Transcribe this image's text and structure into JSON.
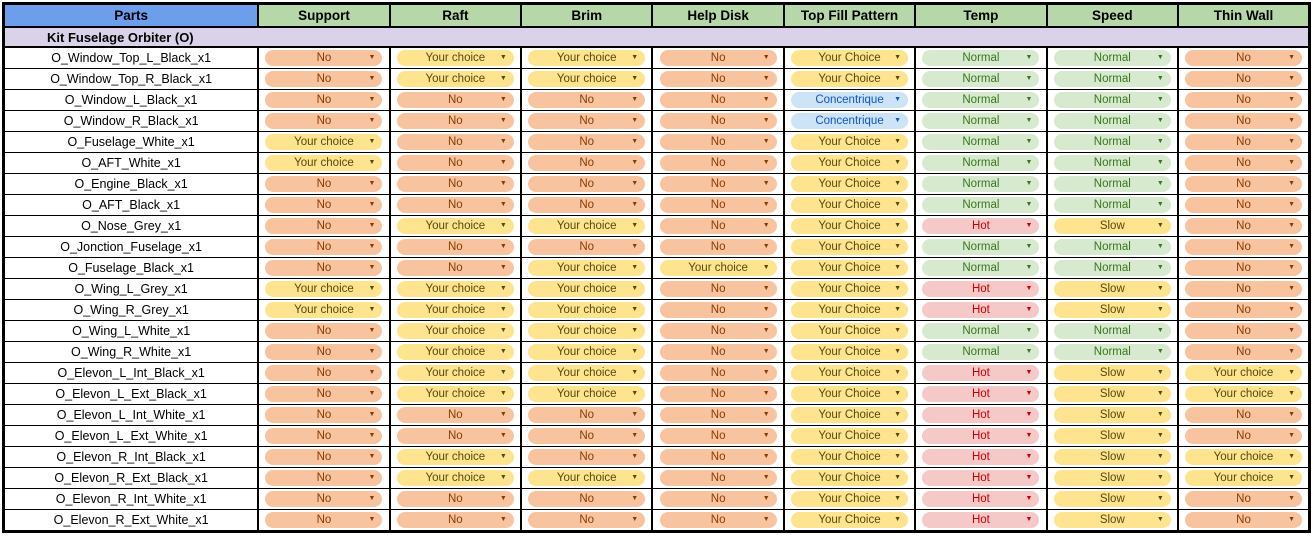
{
  "table": {
    "columns": [
      "Parts",
      "Support",
      "Raft",
      "Brim",
      "Help Disk",
      "Top Fill Pattern",
      "Temp",
      "Speed",
      "Thin Wall"
    ],
    "section_title": "Kit Fuselage Orbiter (O)",
    "rows": [
      {
        "part": "O_Window_Top_L_Black_x1",
        "cells": [
          "No",
          "Your choice",
          "Your choice",
          "No",
          "Your Choice",
          "Normal",
          "Normal",
          "No"
        ]
      },
      {
        "part": "O_Window_Top_R_Black_x1",
        "cells": [
          "No",
          "Your choice",
          "Your choice",
          "No",
          "Your Choice",
          "Normal",
          "Normal",
          "No"
        ]
      },
      {
        "part": "O_Window_L_Black_x1",
        "cells": [
          "No",
          "No",
          "No",
          "No",
          "Concentrique",
          "Normal",
          "Normal",
          "No"
        ]
      },
      {
        "part": "O_Window_R_Black_x1",
        "cells": [
          "No",
          "No",
          "No",
          "No",
          "Concentrique",
          "Normal",
          "Normal",
          "No"
        ]
      },
      {
        "part": "O_Fuselage_White_x1",
        "cells": [
          "Your choice",
          "No",
          "No",
          "No",
          "Your Choice",
          "Normal",
          "Normal",
          "No"
        ]
      },
      {
        "part": "O_AFT_White_x1",
        "cells": [
          "Your choice",
          "No",
          "No",
          "No",
          "Your Choice",
          "Normal",
          "Normal",
          "No"
        ]
      },
      {
        "part": "O_Engine_Black_x1",
        "cells": [
          "No",
          "No",
          "No",
          "No",
          "Your Choice",
          "Normal",
          "Normal",
          "No"
        ]
      },
      {
        "part": "O_AFT_Black_x1",
        "cells": [
          "No",
          "No",
          "No",
          "No",
          "Your Choice",
          "Normal",
          "Normal",
          "No"
        ]
      },
      {
        "part": "O_Nose_Grey_x1",
        "cells": [
          "No",
          "Your choice",
          "Your choice",
          "No",
          "Your Choice",
          "Hot",
          "Slow",
          "No"
        ]
      },
      {
        "part": "O_Jonction_Fuselage_x1",
        "cells": [
          "No",
          "No",
          "No",
          "No",
          "Your Choice",
          "Normal",
          "Normal",
          "No"
        ]
      },
      {
        "part": "O_Fuselage_Black_x1",
        "cells": [
          "No",
          "No",
          "Your choice",
          "Your choice",
          "Your Choice",
          "Normal",
          "Normal",
          "No"
        ]
      },
      {
        "part": "O_Wing_L_Grey_x1",
        "cells": [
          "Your choice",
          "Your choice",
          "Your choice",
          "No",
          "Your Choice",
          "Hot",
          "Slow",
          "No"
        ]
      },
      {
        "part": "O_Wing_R_Grey_x1",
        "cells": [
          "Your choice",
          "Your choice",
          "Your choice",
          "No",
          "Your Choice",
          "Hot",
          "Slow",
          "No"
        ]
      },
      {
        "part": "O_Wing_L_White_x1",
        "cells": [
          "No",
          "Your choice",
          "Your choice",
          "No",
          "Your Choice",
          "Normal",
          "Normal",
          "No"
        ]
      },
      {
        "part": "O_Wing_R_White_x1",
        "cells": [
          "No",
          "Your choice",
          "Your choice",
          "No",
          "Your Choice",
          "Normal",
          "Normal",
          "No"
        ]
      },
      {
        "part": "O_Elevon_L_Int_Black_x1",
        "cells": [
          "No",
          "Your choice",
          "Your choice",
          "No",
          "Your Choice",
          "Hot",
          "Slow",
          "Your choice"
        ]
      },
      {
        "part": "O_Elevon_L_Ext_Black_x1",
        "cells": [
          "No",
          "Your choice",
          "Your choice",
          "No",
          "Your Choice",
          "Hot",
          "Slow",
          "Your choice"
        ]
      },
      {
        "part": "O_Elevon_L_Int_White_x1",
        "cells": [
          "No",
          "No",
          "No",
          "No",
          "Your Choice",
          "Hot",
          "Slow",
          "No"
        ]
      },
      {
        "part": "O_Elevon_L_Ext_White_x1",
        "cells": [
          "No",
          "No",
          "No",
          "No",
          "Your Choice",
          "Hot",
          "Slow",
          "No"
        ]
      },
      {
        "part": "O_Elevon_R_Int_Black_x1",
        "cells": [
          "No",
          "Your choice",
          "No",
          "No",
          "Your Choice",
          "Hot",
          "Slow",
          "Your choice"
        ]
      },
      {
        "part": "O_Elevon_R_Ext_Black_x1",
        "cells": [
          "No",
          "Your choice",
          "Your choice",
          "No",
          "Your Choice",
          "Hot",
          "Slow",
          "Your choice"
        ]
      },
      {
        "part": "O_Elevon_R_Int_White_x1",
        "cells": [
          "No",
          "No",
          "No",
          "No",
          "Your Choice",
          "Hot",
          "Slow",
          "No"
        ]
      },
      {
        "part": "O_Elevon_R_Ext_White_x1",
        "cells": [
          "No",
          "No",
          "No",
          "No",
          "Your Choice",
          "Hot",
          "Slow",
          "No"
        ]
      }
    ]
  },
  "icons": {
    "dropdown_arrow": "▼"
  },
  "colors": {
    "header_parts": "#6D9EEB",
    "header_other": "#B6D7A8",
    "section_bg": "#D9D2E9",
    "grid": "#000000",
    "chips": {
      "orange": {
        "bg": "#F8C4A0",
        "fg": "#8A3B00"
      },
      "yellow": {
        "bg": "#FFE48F",
        "fg": "#55490E"
      },
      "green": {
        "bg": "#D7EACF",
        "fg": "#38761D"
      },
      "red": {
        "bg": "#F6C9C9",
        "fg": "#CC0000"
      },
      "blue": {
        "bg": "#CDE3F6",
        "fg": "#1155CC"
      }
    },
    "chip_color_by_label": {
      "No": "orange",
      "Your choice": "yellow",
      "Your Choice": "yellow",
      "Slow": "yellow",
      "Normal": "green",
      "Hot": "red",
      "Concentrique": "blue"
    }
  }
}
